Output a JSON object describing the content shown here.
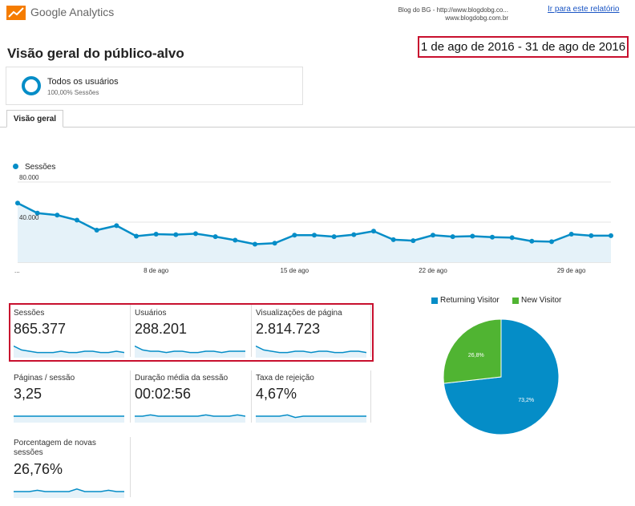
{
  "header": {
    "app_name": "Google Analytics",
    "site_line1": "Blog do BG - http://www.blogdobg.co...",
    "site_line2": "www.blogdobg.com.br",
    "report_link": "Ir para este relatório"
  },
  "page": {
    "title": "Visão geral do público-alvo",
    "date_range": "1 de ago de 2016 - 31 de ago de 2016"
  },
  "segment": {
    "label": "Todos os usuários",
    "sub": "100,00% Sessões"
  },
  "tabs": [
    {
      "label": "Visão geral"
    }
  ],
  "colors": {
    "line": "#058dc7",
    "area": "#e5f2f9",
    "returning": "#058dc7",
    "new": "#50b432",
    "highlight": "#c8102e"
  },
  "chart_data": [
    {
      "type": "line",
      "series": [
        {
          "name": "Sessões",
          "values": [
            59000,
            49000,
            47000,
            42000,
            32000,
            36500,
            26000,
            28000,
            27500,
            28500,
            25500,
            22000,
            18000,
            19000,
            27000,
            27000,
            25500,
            27500,
            31000,
            22500,
            21500,
            27000,
            25500,
            26000,
            25000,
            24500,
            21000,
            20500,
            28000,
            26500,
            26500
          ]
        }
      ],
      "x_tick_labels": [
        "...",
        "8 de ago",
        "15 de ago",
        "22 de ago",
        "29 de ago"
      ],
      "y_tick_labels": [
        "80.000",
        "40.000"
      ],
      "ylim": [
        0,
        80000
      ]
    },
    {
      "type": "pie",
      "legend": [
        "Returning Visitor",
        "New Visitor"
      ],
      "slices": [
        {
          "name": "Returning Visitor",
          "value": 73.2,
          "label": "73,2%"
        },
        {
          "name": "New Visitor",
          "value": 26.8,
          "label": "26,8%"
        }
      ]
    }
  ],
  "metrics": [
    {
      "label": "Sessões",
      "value": "865.377"
    },
    {
      "label": "Usuários",
      "value": "288.201"
    },
    {
      "label": "Visualizações de página",
      "value": "2.814.723"
    },
    {
      "label": "Páginas / sessão",
      "value": "3,25"
    },
    {
      "label": "Duração média da sessão",
      "value": "00:02:56"
    },
    {
      "label": "Taxa de rejeição",
      "value": "4,67%"
    },
    {
      "label": "Porcentagem de novas sessões",
      "value": "26,76%"
    }
  ]
}
